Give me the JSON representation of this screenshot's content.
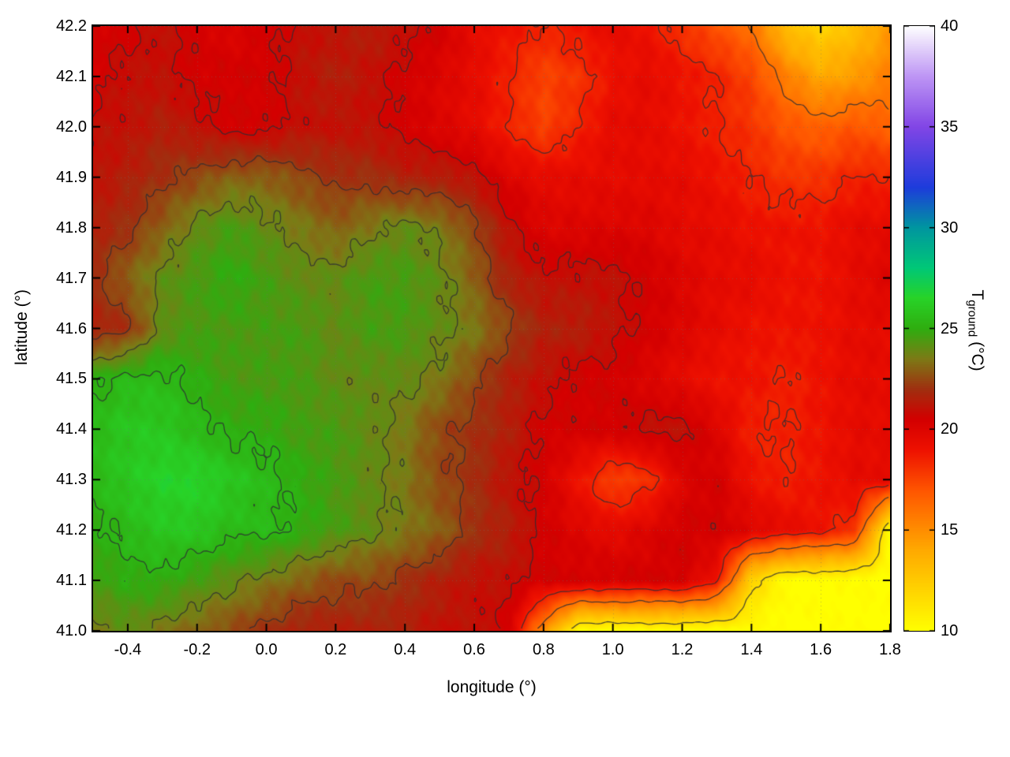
{
  "figure": {
    "background": "#ffffff"
  },
  "chart_data": {
    "type": "heatmap",
    "title": "",
    "xlabel": "longitude (°)",
    "ylabel": "latitude (°)",
    "colorbar_label": {
      "main": "T",
      "sub": "ground",
      "unit": " (°C)"
    },
    "x_range": [
      -0.5,
      1.8
    ],
    "y_range": [
      41.0,
      42.2
    ],
    "x_ticks": [
      -0.4,
      -0.2,
      0.0,
      0.2,
      0.4,
      0.6,
      0.8,
      1.0,
      1.2,
      1.4,
      1.6,
      1.8
    ],
    "y_ticks": [
      41.0,
      41.1,
      41.2,
      41.3,
      41.4,
      41.5,
      41.6,
      41.7,
      41.8,
      41.9,
      42.0,
      42.1,
      42.2
    ],
    "colorbar_range": [
      10,
      40
    ],
    "colorbar_ticks": [
      10,
      15,
      20,
      25,
      30,
      35,
      40
    ],
    "grid_lines": true,
    "palette": [
      [
        10,
        "#ffff00"
      ],
      [
        14,
        "#ffaa00"
      ],
      [
        17,
        "#ff5500"
      ],
      [
        19,
        "#ee1100"
      ],
      [
        20.5,
        "#d40000"
      ],
      [
        22,
        "#a03010"
      ],
      [
        23.5,
        "#7d7a16"
      ],
      [
        25,
        "#2fae10"
      ],
      [
        26.5,
        "#28d428"
      ],
      [
        28,
        "#00c878"
      ],
      [
        30,
        "#0096a0"
      ],
      [
        32,
        "#1e3cdc"
      ],
      [
        35,
        "#8246e6"
      ],
      [
        37.5,
        "#be96f5"
      ],
      [
        40,
        "#ffffff"
      ]
    ],
    "contour_levels": [
      11.5,
      16,
      18.5,
      20.75,
      22.25,
      23.75,
      25.25
    ],
    "contour_color": "#2d2d34",
    "grid": {
      "lon_start": -0.5,
      "lon_step": 0.1,
      "lat_start": 42.2,
      "lat_step": -0.1,
      "values_north_to_south": [
        [
          20.5,
          20.5,
          21,
          20.5,
          20,
          20.5,
          21,
          21,
          21.5,
          21,
          20.5,
          19.5,
          19,
          18.5,
          19,
          19.5,
          19,
          18,
          17,
          16,
          13,
          12,
          13,
          14.5
        ],
        [
          20.5,
          21,
          21,
          20.5,
          20.5,
          20.5,
          21,
          21.5,
          21,
          20.5,
          20,
          19.5,
          18.5,
          17.5,
          18,
          19,
          19.5,
          19,
          18.5,
          17.5,
          15.5,
          14,
          14.5,
          15.5
        ],
        [
          21,
          21,
          21.5,
          21,
          20.5,
          20.5,
          21,
          21,
          21,
          20.5,
          20,
          19.5,
          18.5,
          17.5,
          18.5,
          19.5,
          19.5,
          19,
          18.5,
          18,
          17,
          16.5,
          17,
          16.5
        ],
        [
          21,
          21.5,
          22,
          22.5,
          23,
          23,
          22.5,
          22,
          22,
          21.5,
          21.5,
          21,
          20,
          19.5,
          19.5,
          19.5,
          19.5,
          19.5,
          19,
          18.5,
          18,
          18,
          18.5,
          18.5
        ],
        [
          21.5,
          22,
          23,
          24,
          24.5,
          24,
          23.5,
          23,
          23.5,
          24,
          23.5,
          22.5,
          21,
          20,
          20,
          20,
          20,
          19.5,
          19.5,
          19,
          19,
          19,
          19.5,
          19.5
        ],
        [
          22,
          23,
          24,
          24.5,
          25,
          24.5,
          24,
          24,
          24.5,
          24.5,
          24,
          23,
          21.5,
          21,
          21,
          21,
          20.5,
          20,
          19.5,
          19.5,
          19,
          19,
          19.5,
          20
        ],
        [
          21.5,
          22,
          24,
          24.5,
          24.5,
          24.5,
          24.5,
          24,
          24.5,
          24.5,
          24,
          23.5,
          22.5,
          21.5,
          21.5,
          21,
          20.5,
          20,
          19.5,
          19,
          19,
          19,
          19.5,
          19.5
        ],
        [
          25,
          25.5,
          25.5,
          25,
          24.5,
          24.5,
          24.5,
          24,
          24,
          24,
          23.5,
          22.5,
          21.5,
          21,
          20.5,
          20.5,
          20,
          19.5,
          19,
          19,
          18.5,
          19,
          19.5,
          19.5
        ],
        [
          25.5,
          26,
          26,
          25.5,
          25,
          25,
          24.5,
          24.5,
          24,
          23.5,
          22.5,
          22,
          21.5,
          20.5,
          20.5,
          20.5,
          21,
          21,
          20,
          18.5,
          18.5,
          19,
          19.5,
          19.5
        ],
        [
          25.5,
          26,
          26.5,
          26.5,
          26,
          25.5,
          25,
          24.5,
          24,
          23.5,
          22.5,
          22,
          21,
          20.5,
          19,
          17.5,
          18,
          20,
          20.5,
          19,
          18.5,
          19,
          19.5,
          19.5
        ],
        [
          25,
          25.5,
          26,
          26,
          25.5,
          25.5,
          25,
          24.5,
          24,
          23.5,
          23,
          22,
          21.5,
          20.5,
          20,
          19.5,
          20,
          20.5,
          20.5,
          20,
          19.5,
          19,
          18,
          10
        ],
        [
          24.5,
          25,
          25,
          24.5,
          24,
          23.5,
          23,
          22.5,
          22.5,
          22,
          21.5,
          21,
          21,
          20.5,
          20.5,
          20.5,
          20.5,
          20.5,
          19,
          12,
          10,
          10,
          10,
          10
        ],
        [
          23.5,
          24,
          23.5,
          23,
          22.5,
          22,
          21.5,
          21.5,
          21.5,
          21.5,
          21,
          21,
          20.5,
          15,
          10,
          10,
          10,
          10,
          10,
          10,
          10,
          10,
          10,
          10
        ]
      ]
    }
  }
}
